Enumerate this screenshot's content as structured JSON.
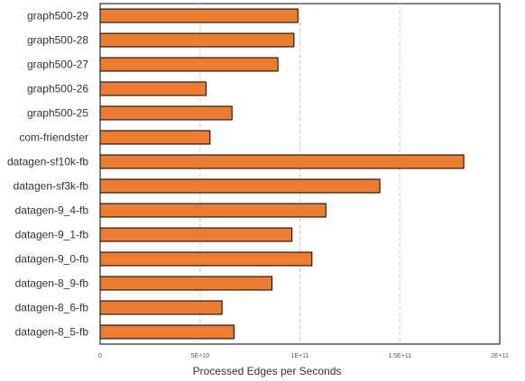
{
  "chart_data": {
    "type": "bar",
    "orientation": "horizontal",
    "title": "",
    "xlabel": "Processed  Edges per Seconds",
    "ylabel": "",
    "categories": [
      "graph500-29",
      "graph500-28",
      "graph500-27",
      "graph500-26",
      "graph500-25",
      "com-friendster",
      "datagen-sf10k-fb",
      "datagen-sf3k-fb",
      "datagen-9_4-fb",
      "datagen-9_1-fb",
      "datagen-9_0-fb",
      "datagen-8_9-fb",
      "datagen-8_6-fb",
      "datagen-8_5-fb"
    ],
    "values": [
      99000000000,
      97000000000,
      89000000000,
      53000000000,
      66000000000,
      55000000000,
      182000000000,
      140000000000,
      113000000000,
      96000000000,
      106000000000,
      86000000000,
      61000000000,
      67000000000
    ],
    "xlim": [
      0,
      200000000000
    ],
    "xticks": [
      0,
      50000000000,
      100000000000,
      150000000000,
      200000000000
    ],
    "xtick_labels": [
      "0",
      "5E+10",
      "1E+11",
      "1.5E+11",
      "2E+11"
    ],
    "grid": "vertical dashed",
    "legend": "none",
    "bar_color": "#ED7D31",
    "bar_edge_color": "#000000"
  }
}
